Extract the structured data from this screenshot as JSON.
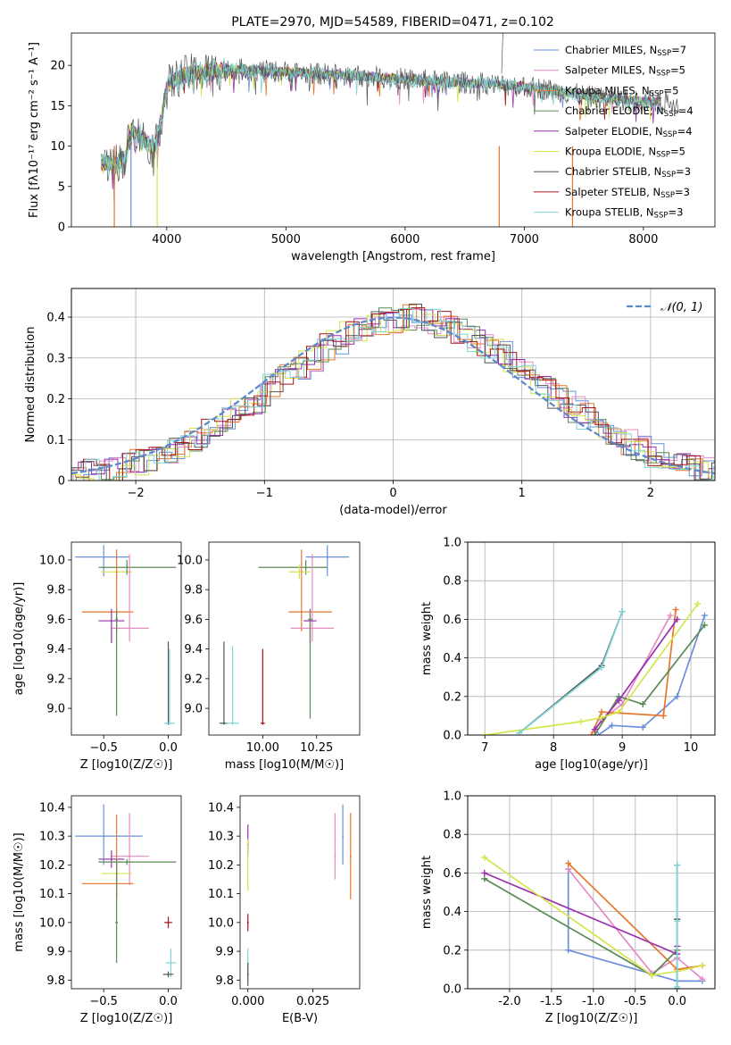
{
  "figure": {
    "title": "PLATE=2970, MJD=54589, FIBERID=0471, z=0.102"
  },
  "colors": {
    "Chabrier MILES": "#6a8fdb",
    "Salpeter MILES": "#e58bc4",
    "Kroupa MILES": "#e8762b",
    "Chabrier ELODIE": "#5b8a57",
    "Salpeter ELODIE": "#9b2fae",
    "Kroupa ELODIE": "#d4e54d",
    "Chabrier STELIB": "#555555",
    "Salpeter STELIB": "#a8141b",
    "Kroupa STELIB": "#7fd5d5",
    "gaussian": "#5a88cc"
  },
  "chart_data": [
    {
      "type": "line",
      "panel": "spectrum",
      "title": "PLATE=2970, MJD=54589, FIBERID=0471, z=0.102",
      "xlabel": "wavelength [Angstrom, rest frame]",
      "ylabel": "Flux [fλ10⁻¹⁷ erg cm⁻² s⁻¹ A⁻¹]",
      "xlim": [
        3200,
        8600
      ],
      "ylim": [
        0,
        24
      ],
      "xticks": [
        4000,
        5000,
        6000,
        7000,
        8000
      ],
      "yticks": [
        0,
        5,
        10,
        15,
        20
      ],
      "grid": false,
      "legend_position": "top-right",
      "legend": [
        {
          "name": "Chabrier MILES",
          "nssp": "7"
        },
        {
          "name": "Salpeter MILES",
          "nssp": "5"
        },
        {
          "name": "Kroupa MILES",
          "nssp": "5"
        },
        {
          "name": "Chabrier ELODIE",
          "nssp": "4"
        },
        {
          "name": "Salpeter ELODIE",
          "nssp": "4"
        },
        {
          "name": "Kroupa ELODIE",
          "nssp": "5"
        },
        {
          "name": "Chabrier STELIB",
          "nssp": "3"
        },
        {
          "name": "Salpeter STELIB",
          "nssp": "3"
        },
        {
          "name": "Kroupa STELIB",
          "nssp": "3"
        }
      ],
      "continuum": {
        "x": [
          3450,
          3550,
          3650,
          3700,
          3800,
          3900,
          3950,
          4000,
          4100,
          4200,
          4400,
          4600,
          4800,
          5000,
          5200,
          5500,
          6000,
          6300,
          6600,
          6800,
          7000,
          7200,
          7400,
          7600,
          7800,
          8000,
          8200,
          8400,
          8600
        ],
        "y": [
          8.0,
          7.8,
          8.5,
          12.0,
          11.0,
          9.5,
          13.0,
          17.5,
          18.5,
          19.0,
          19.3,
          19.5,
          19.3,
          19.2,
          19.0,
          18.8,
          18.3,
          18.0,
          17.8,
          17.6,
          17.4,
          17.0,
          16.5,
          16.0,
          15.8,
          15.6,
          15.5,
          15.3,
          15.2
        ]
      }
    },
    {
      "type": "bar",
      "panel": "residual-histogram",
      "xlabel": "(data-model)/error",
      "ylabel": "Normed distribution",
      "xlim": [
        -2.5,
        2.5
      ],
      "ylim": [
        0,
        0.47
      ],
      "xticks": [
        -2,
        -1,
        0,
        1,
        2
      ],
      "yticks": [
        0.0,
        0.1,
        0.2,
        0.3,
        0.4
      ],
      "grid": true,
      "legend_position": "top-right",
      "legend": [
        {
          "name": "𝒩(0, 1)"
        }
      ],
      "gaussian": {
        "mean": 0,
        "sigma": 1
      }
    },
    {
      "type": "scatter",
      "panel": "age-vs-metallicity",
      "xlabel": "Z [log10(Z/Z☉)]",
      "ylabel": "age [log10(age/yr)]",
      "xlim": [
        -0.75,
        0.1
      ],
      "ylim": [
        8.82,
        10.12
      ],
      "xticks": [
        -0.5,
        0.0
      ],
      "yticks": [
        9.0,
        9.2,
        9.4,
        9.6,
        9.8,
        10.0
      ],
      "points": [
        {
          "series": "Chabrier MILES",
          "x": -0.5,
          "y": 10.02,
          "xerr": [
            0.22,
            0.2
          ],
          "yerr": [
            0.13,
            0.08
          ]
        },
        {
          "series": "Kroupa ELODIE",
          "x": -0.4,
          "y": 9.92,
          "xerr": [
            0.12,
            0.12
          ],
          "yerr": [
            0.05,
            0.05
          ]
        },
        {
          "series": "Chabrier ELODIE",
          "x": -0.32,
          "y": 9.95,
          "xerr": [
            0.22,
            0.38
          ],
          "yerr": [
            0.05,
            0.05
          ]
        },
        {
          "series": "Kroupa MILES",
          "x": -0.4,
          "y": 9.65,
          "xerr": [
            0.27,
            0.13
          ],
          "yerr": [
            0.13,
            0.42
          ]
        },
        {
          "series": "Salpeter MILES",
          "x": -0.3,
          "y": 9.54,
          "xerr": [
            0.14,
            0.15
          ],
          "yerr": [
            0.09,
            0.5
          ]
        },
        {
          "series": "Salpeter ELODIE",
          "x": -0.44,
          "y": 9.59,
          "xerr": [
            0.1,
            0.1
          ],
          "yerr": [
            0.15,
            0.08
          ]
        },
        {
          "series": "Chabrier ELODIE",
          "x": -0.4,
          "y": 9.6,
          "xerr": [
            0.01,
            0.01
          ],
          "yerr": [
            0.65,
            0.06
          ]
        },
        {
          "series": "Chabrier STELIB",
          "x": 0.0,
          "y": 8.9,
          "xerr": [
            0.02,
            0.02
          ],
          "yerr": [
            0.01,
            0.55
          ]
        },
        {
          "series": "Kroupa STELIB",
          "x": 0.01,
          "y": 8.9,
          "xerr": [
            0.04,
            0.04
          ],
          "yerr": [
            0.01,
            0.5
          ]
        }
      ]
    },
    {
      "type": "scatter",
      "panel": "age-vs-mass",
      "xlabel": "mass [log10(M/M☉)]",
      "ylabel": "",
      "xlim": [
        9.75,
        10.45
      ],
      "ylim": [
        8.82,
        10.12
      ],
      "xticks": [
        10.0,
        10.25
      ],
      "yticks": [
        9.0,
        9.2,
        9.4,
        9.6,
        9.8,
        10.0
      ],
      "points": [
        {
          "series": "Chabrier MILES",
          "x": 10.3,
          "y": 10.02,
          "xerr": [
            0.1,
            0.1
          ],
          "yerr": [
            0.13,
            0.08
          ]
        },
        {
          "series": "Chabrier ELODIE",
          "x": 10.2,
          "y": 9.95,
          "xerr": [
            0.22,
            0.1
          ],
          "yerr": [
            0.05,
            0.05
          ]
        },
        {
          "series": "Kroupa ELODIE",
          "x": 10.17,
          "y": 9.92,
          "xerr": [
            0.05,
            0.05
          ],
          "yerr": [
            0.05,
            0.05
          ]
        },
        {
          "series": "Kroupa MILES",
          "x": 10.18,
          "y": 9.65,
          "xerr": [
            0.06,
            0.14
          ],
          "yerr": [
            0.13,
            0.42
          ]
        },
        {
          "series": "Salpeter MILES",
          "x": 10.23,
          "y": 9.54,
          "xerr": [
            0.1,
            0.1
          ],
          "yerr": [
            0.09,
            0.5
          ]
        },
        {
          "series": "Salpeter ELODIE",
          "x": 10.22,
          "y": 9.59,
          "xerr": [
            0.03,
            0.03
          ],
          "yerr": [
            0.15,
            0.08
          ]
        },
        {
          "series": "Chabrier ELODIE",
          "x": 10.22,
          "y": 9.6,
          "xerr": [
            0.01,
            0.01
          ],
          "yerr": [
            0.67,
            0.06
          ]
        },
        {
          "series": "Chabrier STELIB",
          "x": 9.82,
          "y": 8.9,
          "xerr": [
            0.02,
            0.02
          ],
          "yerr": [
            0.01,
            0.55
          ]
        },
        {
          "series": "Kroupa STELIB",
          "x": 9.86,
          "y": 8.9,
          "xerr": [
            0.03,
            0.03
          ],
          "yerr": [
            0.01,
            0.52
          ]
        },
        {
          "series": "Salpeter STELIB",
          "x": 10.0,
          "y": 8.9,
          "xerr": [
            0.01,
            0.01
          ],
          "yerr": [
            0.01,
            0.5
          ]
        }
      ]
    },
    {
      "type": "line",
      "panel": "mass-weight-vs-age",
      "xlabel": "age [log10(age/yr)]",
      "ylabel": "mass weight",
      "xlim": [
        6.75,
        10.35
      ],
      "ylim": [
        0,
        1.0
      ],
      "xticks": [
        7,
        8,
        9,
        10
      ],
      "yticks": [
        0.0,
        0.2,
        0.4,
        0.6,
        0.8,
        1.0
      ],
      "grid": true,
      "series": [
        {
          "name": "Chabrier MILES",
          "x": [
            8.65,
            8.85,
            9.3,
            9.8,
            10.2
          ],
          "y": [
            0.0,
            0.05,
            0.04,
            0.2,
            0.62
          ]
        },
        {
          "name": "Salpeter MILES",
          "x": [
            8.6,
            8.7,
            9.0,
            9.7
          ],
          "y": [
            0.02,
            0.08,
            0.16,
            0.62
          ]
        },
        {
          "name": "Kroupa MILES",
          "x": [
            8.55,
            8.7,
            9.6,
            9.78
          ],
          "y": [
            0.0,
            0.12,
            0.1,
            0.65
          ]
        },
        {
          "name": "Chabrier ELODIE",
          "x": [
            8.6,
            8.95,
            9.3,
            10.2
          ],
          "y": [
            0.0,
            0.2,
            0.16,
            0.57
          ]
        },
        {
          "name": "Salpeter ELODIE",
          "x": [
            8.6,
            8.95,
            9.8
          ],
          "y": [
            0.03,
            0.18,
            0.6
          ]
        },
        {
          "name": "Kroupa ELODIE",
          "x": [
            7.0,
            8.4,
            8.7,
            8.95,
            10.1
          ],
          "y": [
            0.0,
            0.07,
            0.09,
            0.12,
            0.68
          ]
        },
        {
          "name": "Chabrier STELIB",
          "x": [
            7.5,
            8.7,
            9.0
          ],
          "y": [
            0.01,
            0.36,
            0.64
          ]
        },
        {
          "name": "Kroupa STELIB",
          "x": [
            7.5,
            8.7,
            9.0
          ],
          "y": [
            0.01,
            0.35,
            0.64
          ]
        }
      ]
    },
    {
      "type": "scatter",
      "panel": "mass-vs-metallicity",
      "xlabel": "Z [log10(Z/Z☉)]",
      "ylabel": "mass [log10(M/M☉)]",
      "xlim": [
        -0.75,
        0.1
      ],
      "ylim": [
        9.77,
        10.44
      ],
      "xticks": [
        -0.5,
        0.0
      ],
      "yticks": [
        9.8,
        9.9,
        10.0,
        10.1,
        10.2,
        10.3,
        10.4
      ],
      "points": [
        {
          "series": "Chabrier MILES",
          "x": -0.5,
          "y": 10.3,
          "xerr": [
            0.22,
            0.3
          ],
          "yerr": [
            0.1,
            0.11
          ]
        },
        {
          "series": "Salpeter MILES",
          "x": -0.3,
          "y": 10.23,
          "xerr": [
            0.14,
            0.15
          ],
          "yerr": [
            0.1,
            0.15
          ]
        },
        {
          "series": "Salpeter ELODIE",
          "x": -0.44,
          "y": 10.22,
          "xerr": [
            0.1,
            0.1
          ],
          "yerr": [
            0.03,
            0.03
          ]
        },
        {
          "series": "Chabrier ELODIE",
          "x": -0.32,
          "y": 10.21,
          "xerr": [
            0.22,
            0.38
          ],
          "yerr": [
            0.01,
            0.01
          ]
        },
        {
          "series": "Kroupa ELODIE",
          "x": -0.4,
          "y": 10.17,
          "xerr": [
            0.12,
            0.12
          ],
          "yerr": [
            0.05,
            0.05
          ]
        },
        {
          "series": "Kroupa MILES",
          "x": -0.4,
          "y": 10.135,
          "xerr": [
            0.27,
            0.13
          ],
          "yerr": [
            0.05,
            0.24
          ]
        },
        {
          "series": "Chabrier ELODIE",
          "x": -0.4,
          "y": 10.0,
          "xerr": [
            0.01,
            0.01
          ],
          "yerr": [
            0.14,
            0.22
          ]
        },
        {
          "series": "Salpeter STELIB",
          "x": 0.0,
          "y": 10.0,
          "xerr": [
            0.03,
            0.03
          ],
          "yerr": [
            0.02,
            0.02
          ]
        },
        {
          "series": "Kroupa STELIB",
          "x": 0.02,
          "y": 9.86,
          "xerr": [
            0.04,
            0.04
          ],
          "yerr": [
            0.05,
            0.05
          ]
        },
        {
          "series": "Chabrier STELIB",
          "x": 0.0,
          "y": 9.82,
          "xerr": [
            0.04,
            0.04
          ],
          "yerr": [
            0.01,
            0.01
          ]
        }
      ]
    },
    {
      "type": "scatter",
      "panel": "mass-vs-reddening",
      "xlabel": "E(B-V)",
      "ylabel": "",
      "xlim": [
        -0.003,
        0.043
      ],
      "ylim": [
        9.77,
        10.44
      ],
      "xticks": [
        0.0,
        0.025
      ],
      "yticks": [
        9.8,
        9.9,
        10.0,
        10.1,
        10.2,
        10.3,
        10.4
      ],
      "points": [
        {
          "series": "Chabrier MILES",
          "x": 0.0365,
          "y": 10.3,
          "yerr": [
            0.1,
            0.11
          ]
        },
        {
          "series": "Salpeter MILES",
          "x": 0.0335,
          "y": 10.23,
          "yerr": [
            0.08,
            0.15
          ]
        },
        {
          "series": "Kroupa MILES",
          "x": 0.0395,
          "y": 10.23,
          "yerr": [
            0.15,
            0.15
          ]
        },
        {
          "series": "Salpeter ELODIE",
          "x": 0.0,
          "y": 10.27,
          "yerr": [
            0.04,
            0.07
          ]
        },
        {
          "series": "Kroupa ELODIE",
          "x": 0.0,
          "y": 10.15,
          "yerr": [
            0.04,
            0.14
          ]
        },
        {
          "series": "Salpeter STELIB",
          "x": 0.0,
          "y": 10.0,
          "yerr": [
            0.03,
            0.03
          ]
        },
        {
          "series": "Kroupa STELIB",
          "x": 0.0,
          "y": 9.86,
          "yerr": [
            0.05,
            0.05
          ]
        },
        {
          "series": "Chabrier STELIB",
          "x": 0.0,
          "y": 9.82,
          "yerr": [
            0.04,
            0.04
          ]
        }
      ]
    },
    {
      "type": "line",
      "panel": "mass-weight-vs-metallicity",
      "xlabel": "Z [log10(Z/Z☉)]",
      "ylabel": "mass weight",
      "xlim": [
        -2.5,
        0.45
      ],
      "ylim": [
        0,
        1.0
      ],
      "xticks": [
        -2.0,
        -1.5,
        -1.0,
        -0.5,
        0.0
      ],
      "yticks": [
        0.0,
        0.2,
        0.4,
        0.6,
        0.8,
        1.0
      ],
      "grid": true,
      "series": [
        {
          "name": "Chabrier MILES",
          "x": [
            -1.3,
            -1.3,
            0.0,
            0.3
          ],
          "y": [
            0.62,
            0.2,
            0.04,
            0.04
          ]
        },
        {
          "name": "Salpeter MILES",
          "x": [
            -1.3,
            -0.3,
            0.0,
            0.3
          ],
          "y": [
            0.62,
            0.08,
            0.16,
            0.05
          ]
        },
        {
          "name": "Kroupa MILES",
          "x": [
            -1.3,
            0.0,
            0.3
          ],
          "y": [
            0.65,
            0.1,
            0.12
          ]
        },
        {
          "name": "Chabrier ELODIE",
          "x": [
            -2.3,
            -0.3,
            0.0
          ],
          "y": [
            0.57,
            0.07,
            0.2
          ]
        },
        {
          "name": "Salpeter ELODIE",
          "x": [
            -2.3,
            0.0,
            0.0
          ],
          "y": [
            0.6,
            0.18,
            0.22
          ]
        },
        {
          "name": "Kroupa ELODIE",
          "x": [
            -2.3,
            -0.3,
            0.0,
            0.3
          ],
          "y": [
            0.68,
            0.07,
            0.09,
            0.12
          ]
        },
        {
          "name": "Chabrier STELIB",
          "x": [
            0.0,
            0.0,
            0.0
          ],
          "y": [
            0.0,
            0.36,
            0.64
          ]
        },
        {
          "name": "Kroupa STELIB",
          "x": [
            0.0,
            0.0,
            0.0
          ],
          "y": [
            0.01,
            0.35,
            0.64
          ]
        }
      ]
    }
  ]
}
